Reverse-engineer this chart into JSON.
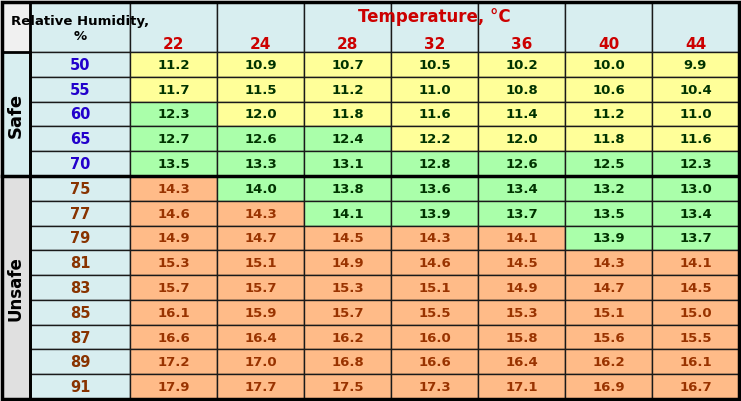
{
  "header_rh_line1": "Relative Humidity,",
  "header_rh_line2": "%",
  "header_temp": "Temperature, °C",
  "temp_cols": [
    "22",
    "24",
    "28",
    "32",
    "36",
    "40",
    "44"
  ],
  "rh_rows": [
    "50",
    "55",
    "60",
    "65",
    "70",
    "75",
    "77",
    "79",
    "81",
    "83",
    "85",
    "87",
    "89",
    "91"
  ],
  "safe_label": "Safe",
  "unsafe_label": "Unsafe",
  "safe_count": 5,
  "values": [
    [
      "11.2",
      "10.9",
      "10.7",
      "10.5",
      "10.2",
      "10.0",
      "9.9"
    ],
    [
      "11.7",
      "11.5",
      "11.2",
      "11.0",
      "10.8",
      "10.6",
      "10.4"
    ],
    [
      "12.3",
      "12.0",
      "11.8",
      "11.6",
      "11.4",
      "11.2",
      "11.0"
    ],
    [
      "12.7",
      "12.6",
      "12.4",
      "12.2",
      "12.0",
      "11.8",
      "11.6"
    ],
    [
      "13.5",
      "13.3",
      "13.1",
      "12.8",
      "12.6",
      "12.5",
      "12.3"
    ],
    [
      "14.3",
      "14.0",
      "13.8",
      "13.6",
      "13.4",
      "13.2",
      "13.0"
    ],
    [
      "14.6",
      "14.3",
      "14.1",
      "13.9",
      "13.7",
      "13.5",
      "13.4"
    ],
    [
      "14.9",
      "14.7",
      "14.5",
      "14.3",
      "14.1",
      "13.9",
      "13.7"
    ],
    [
      "15.3",
      "15.1",
      "14.9",
      "14.6",
      "14.5",
      "14.3",
      "14.1"
    ],
    [
      "15.7",
      "15.7",
      "15.3",
      "15.1",
      "14.9",
      "14.7",
      "14.5"
    ],
    [
      "16.1",
      "15.9",
      "15.7",
      "15.5",
      "15.3",
      "15.1",
      "15.0"
    ],
    [
      "16.6",
      "16.4",
      "16.2",
      "16.0",
      "15.8",
      "15.6",
      "15.5"
    ],
    [
      "17.2",
      "17.0",
      "16.8",
      "16.6",
      "16.4",
      "16.2",
      "16.1"
    ],
    [
      "17.9",
      "17.7",
      "17.5",
      "17.3",
      "17.1",
      "16.9",
      "16.7"
    ]
  ],
  "cell_colors": [
    [
      "#FFFF99",
      "#FFFF99",
      "#FFFF99",
      "#FFFF99",
      "#FFFF99",
      "#FFFF99",
      "#FFFF99"
    ],
    [
      "#FFFF99",
      "#FFFF99",
      "#FFFF99",
      "#FFFF99",
      "#FFFF99",
      "#FFFF99",
      "#FFFF99"
    ],
    [
      "#AAFFAA",
      "#FFFF99",
      "#FFFF99",
      "#FFFF99",
      "#FFFF99",
      "#FFFF99",
      "#FFFF99"
    ],
    [
      "#AAFFAA",
      "#AAFFAA",
      "#AAFFAA",
      "#FFFF99",
      "#FFFF99",
      "#FFFF99",
      "#FFFF99"
    ],
    [
      "#AAFFAA",
      "#AAFFAA",
      "#AAFFAA",
      "#AAFFAA",
      "#AAFFAA",
      "#AAFFAA",
      "#AAFFAA"
    ],
    [
      "#FFBB88",
      "#AAFFAA",
      "#AAFFAA",
      "#AAFFAA",
      "#AAFFAA",
      "#AAFFAA",
      "#AAFFAA"
    ],
    [
      "#FFBB88",
      "#FFBB88",
      "#AAFFAA",
      "#AAFFAA",
      "#AAFFAA",
      "#AAFFAA",
      "#AAFFAA"
    ],
    [
      "#FFBB88",
      "#FFBB88",
      "#FFBB88",
      "#FFBB88",
      "#FFBB88",
      "#AAFFAA",
      "#AAFFAA"
    ],
    [
      "#FFBB88",
      "#FFBB88",
      "#FFBB88",
      "#FFBB88",
      "#FFBB88",
      "#FFBB88",
      "#FFBB88"
    ],
    [
      "#FFBB88",
      "#FFBB88",
      "#FFBB88",
      "#FFBB88",
      "#FFBB88",
      "#FFBB88",
      "#FFBB88"
    ],
    [
      "#FFBB88",
      "#FFBB88",
      "#FFBB88",
      "#FFBB88",
      "#FFBB88",
      "#FFBB88",
      "#FFBB88"
    ],
    [
      "#FFBB88",
      "#FFBB88",
      "#FFBB88",
      "#FFBB88",
      "#FFBB88",
      "#FFBB88",
      "#FFBB88"
    ],
    [
      "#FFBB88",
      "#FFBB88",
      "#FFBB88",
      "#FFBB88",
      "#FFBB88",
      "#FFBB88",
      "#FFBB88"
    ],
    [
      "#FFBB88",
      "#FFBB88",
      "#FFBB88",
      "#FFBB88",
      "#FFBB88",
      "#FFBB88",
      "#FFBB88"
    ]
  ],
  "header_bg": "#D8EEF0",
  "rh_col_bg": "#D8EEF0",
  "safe_sidebar_bg": "#D8EEF0",
  "unsafe_sidebar_bg": "#E0E0E0",
  "fig_bg": "#F0F0F0",
  "border_color": "#1A1A1A",
  "thick_border": "#000000",
  "rh_text_color_safe": "#2200CC",
  "rh_text_color_unsafe": "#883300",
  "data_text_color_safe_zone": "#003300",
  "data_text_color_unsafe_zone": "#993300",
  "header_text_color": "#000000",
  "temp_header_text_color": "#CC0000",
  "sidebar_text_color": "#000000"
}
